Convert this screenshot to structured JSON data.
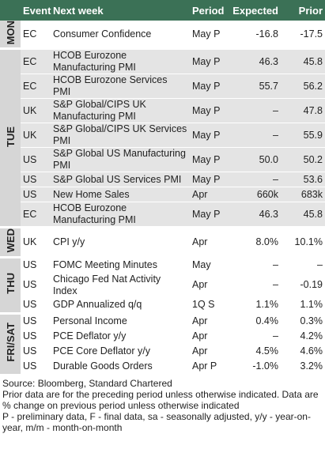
{
  "header": [
    "Event",
    "Next week",
    "Period",
    "Expected",
    "Prior"
  ],
  "groups": [
    {
      "day": "MON",
      "rows": [
        [
          "EC",
          "Consumer Confidence",
          "May P",
          "-16.8",
          "-17.5"
        ]
      ]
    },
    {
      "day": "TUE",
      "rows": [
        [
          "EC",
          "HCOB Eurozone Manufacturing PMI",
          "May P",
          "46.3",
          "45.8"
        ],
        [
          "EC",
          "HCOB Eurozone Services PMI",
          "May P",
          "55.7",
          "56.2"
        ],
        [
          "UK",
          "S&P Global/CIPS UK Manufacturing PMI",
          "May P",
          "–",
          "47.8"
        ],
        [
          "UK",
          "S&P Global/CIPS UK Services PMI",
          "May P",
          "–",
          "55.9"
        ],
        [
          "US",
          "S&P Global US Manufacturing PMI",
          "May P",
          "50.0",
          "50.2"
        ],
        [
          "US",
          "S&P Global US Services PMI",
          "May P",
          "–",
          "53.6"
        ],
        [
          "US",
          "New Home Sales",
          "Apr",
          "660k",
          "683k"
        ],
        [
          "EC",
          "HCOB Eurozone Manufacturing PMI",
          "May P",
          "46.3",
          "45.8"
        ]
      ]
    },
    {
      "day": "WED",
      "rows": [
        [
          "UK",
          "CPI y/y",
          "Apr",
          "8.0%",
          "10.1%"
        ]
      ]
    },
    {
      "day": "THU",
      "rows": [
        [
          "US",
          "FOMC Meeting Minutes",
          "May",
          "–",
          "–"
        ],
        [
          "US",
          "Chicago Fed Nat Activity Index",
          "Apr",
          "–",
          "-0.19"
        ],
        [
          "US",
          "GDP Annualized q/q",
          "1Q S",
          "1.1%",
          "1.1%"
        ]
      ]
    },
    {
      "day": "FRI/SAT",
      "rows": [
        [
          "US",
          "Personal Income",
          "Apr",
          "0.4%",
          "0.3%"
        ],
        [
          "US",
          "PCE Deflator y/y",
          "Apr",
          "–",
          "4.2%"
        ],
        [
          "US",
          "PCE Core Deflator y/y",
          "Apr",
          "4.5%",
          "4.6%"
        ],
        [
          "US",
          "Durable Goods Orders",
          "Apr P",
          "-1.0%",
          "3.2%"
        ]
      ]
    }
  ],
  "footer": [
    "Source: Bloomberg, Standard Chartered",
    "Prior data are for the preceding period unless otherwise indicated. Data are % change on previous period unless otherwise indicated",
    "P - preliminary data, F - final data, sa - seasonally adjusted, y/y - year-on-year, m/m - month-on-month"
  ]
}
